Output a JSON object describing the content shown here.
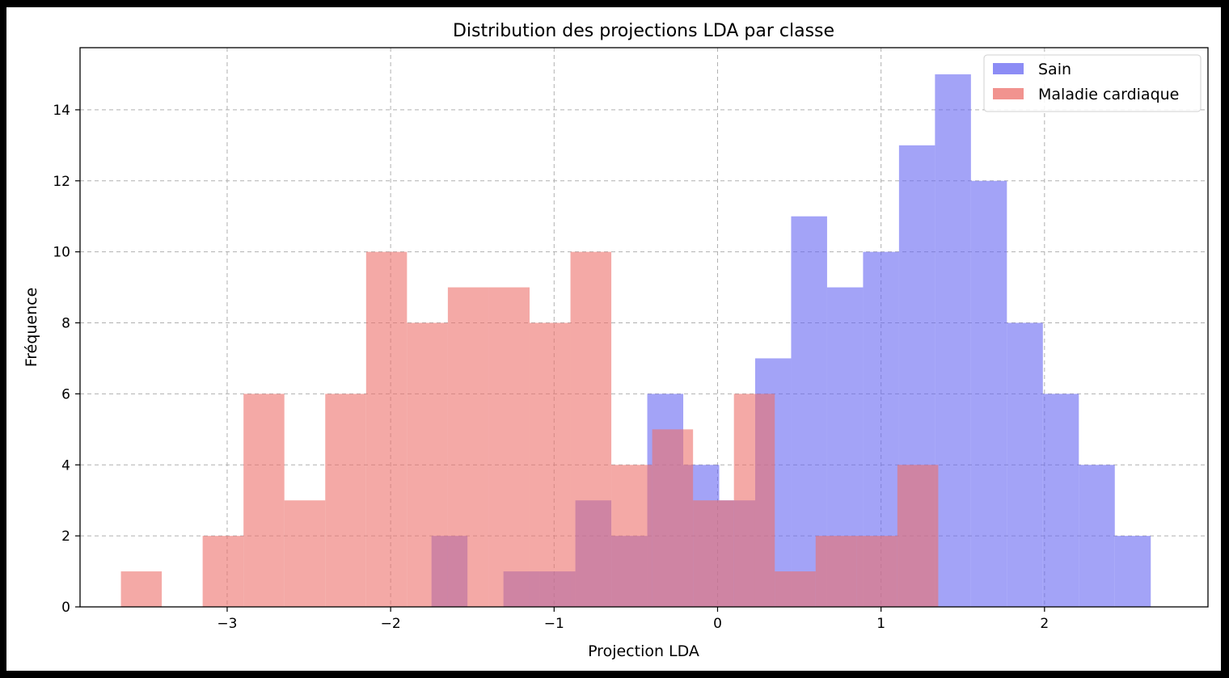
{
  "chart_data": {
    "type": "histogram",
    "title": "Distribution des projections LDA par classe",
    "xlabel": "Projection LDA",
    "ylabel": "Fréquence",
    "xlim": [
      -3.9,
      3.0
    ],
    "ylim": [
      0,
      15.75
    ],
    "xticks": [
      -3,
      -2,
      -1,
      0,
      1,
      2
    ],
    "xtick_labels": [
      "−3",
      "−2",
      "−1",
      "0",
      "1",
      "2"
    ],
    "yticks": [
      0,
      2,
      4,
      6,
      8,
      10,
      12,
      14
    ],
    "grid": true,
    "legend_position": "top-right",
    "series": [
      {
        "name": "Sain",
        "color": "#6666f2",
        "alpha": 0.6,
        "bin_edges": [
          -1.75,
          -1.53,
          -1.31,
          -1.09,
          -0.87,
          -0.65,
          -0.43,
          -0.21,
          0.01,
          0.23,
          0.45,
          0.67,
          0.89,
          1.11,
          1.33,
          1.55,
          1.77,
          1.99,
          2.21,
          2.43,
          2.65
        ],
        "counts": [
          2,
          0,
          1,
          1,
          3,
          2,
          6,
          4,
          3,
          7,
          11,
          9,
          10,
          13,
          15,
          12,
          8,
          6,
          4,
          2
        ]
      },
      {
        "name": "Maladie cardiaque",
        "color": "#ec6f6a",
        "alpha": 0.6,
        "bin_edges": [
          -3.65,
          -3.4,
          -3.15,
          -2.9,
          -2.65,
          -2.4,
          -2.15,
          -1.9,
          -1.65,
          -1.4,
          -1.15,
          -0.9,
          -0.65,
          -0.4,
          -0.15,
          0.1,
          0.35,
          0.6,
          0.85,
          1.1,
          1.35
        ],
        "counts": [
          1,
          0,
          2,
          6,
          3,
          6,
          10,
          8,
          9,
          9,
          8,
          10,
          4,
          5,
          3,
          6,
          1,
          2,
          2,
          4
        ]
      }
    ]
  }
}
